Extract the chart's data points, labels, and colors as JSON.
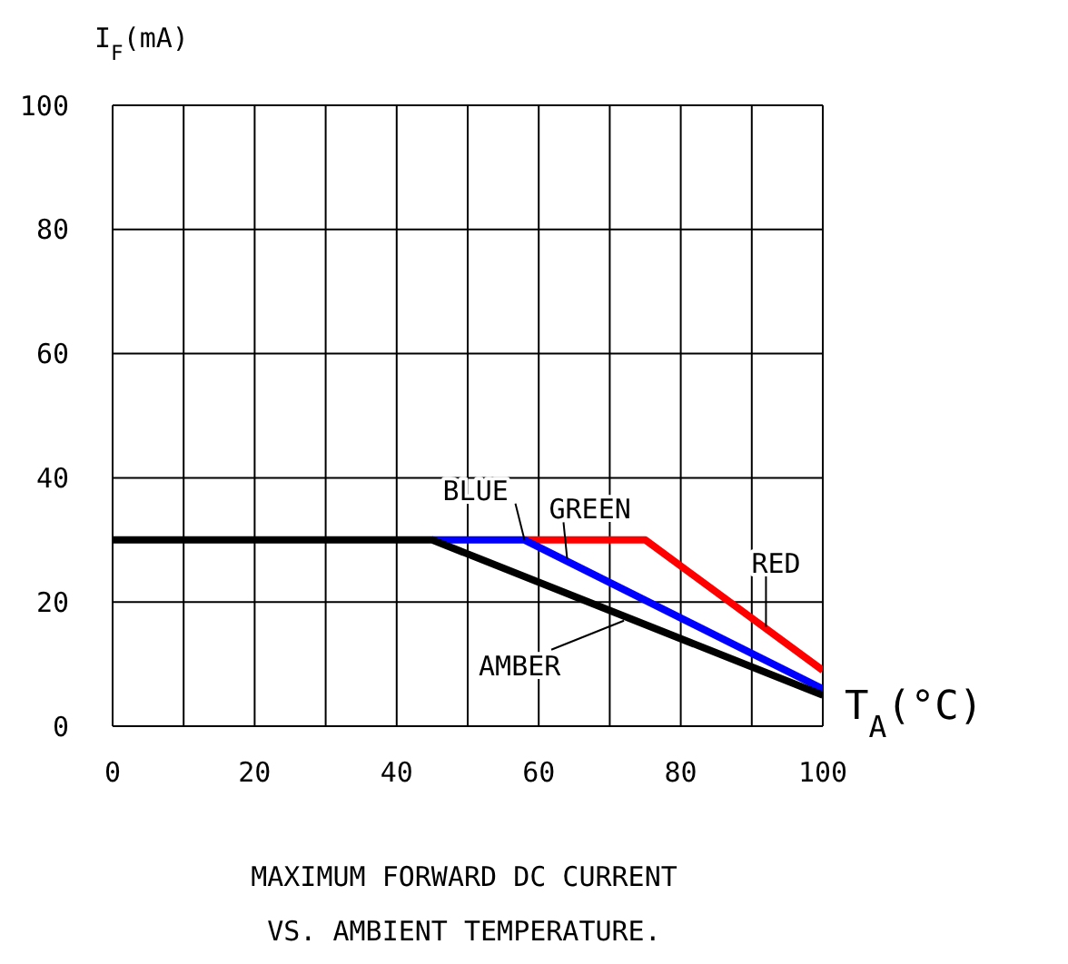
{
  "chart_data": {
    "type": "line",
    "title": "MAXIMUM FORWARD DC CURRENT",
    "subtitle": "VS. AMBIENT TEMPERATURE.",
    "xlabel": "T$_{A}$(°C)",
    "ylabel": "I$_{F}$(mA)",
    "xlim": [
      0,
      100
    ],
    "ylim": [
      0,
      100
    ],
    "xticks": [
      0,
      {
        "value": 10,
        "label": null
      },
      20,
      {
        "value": 30,
        "label": null
      },
      40,
      {
        "value": 50,
        "label": null
      },
      60,
      {
        "value": 70,
        "label": null
      },
      80,
      {
        "value": 90,
        "label": null
      },
      100
    ],
    "yticks": [
      0,
      20,
      40,
      60,
      80,
      100
    ],
    "grid": true,
    "marker": "none",
    "line_style": "solid",
    "series": [
      {
        "color": "#ff0000",
        "x": [
          58,
          75,
          100
        ],
        "values": [
          30,
          30,
          9
        ]
      },
      {
        "color": "#0000ff",
        "x": [
          45,
          58,
          100
        ],
        "values": [
          30,
          30,
          6
        ]
      },
      {
        "color": "#000000",
        "x": [
          0,
          45,
          100
        ],
        "values": [
          30,
          30,
          5
        ]
      }
    ],
    "annotations": [
      {
        "text": "BLUE",
        "x": 58,
        "y": 30
      },
      {
        "text": "GREEN",
        "x": 64,
        "y": 27
      },
      {
        "text": "RED",
        "x": 92,
        "y": 16
      },
      {
        "text": "AMBER",
        "x": 72,
        "y": 17
      }
    ]
  }
}
